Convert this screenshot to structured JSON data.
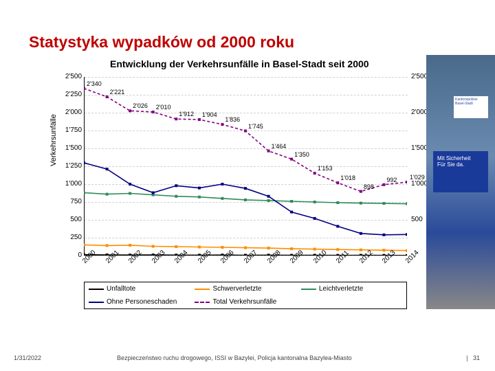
{
  "title": "Statystyka wypadków od 2000 roku",
  "title_color": "#c00000",
  "chart": {
    "type": "line",
    "title": "Entwicklung der Verkehrsunfälle in Basel-Stadt seit 2000",
    "ylabel": "Verkehrsunfälle",
    "ylim": [
      0,
      2500
    ],
    "ytick_step": 250,
    "yticks": [
      "0",
      "250",
      "500",
      "750",
      "1'000",
      "1'250",
      "1'500",
      "1'750",
      "2'000",
      "2'250",
      "2'500"
    ],
    "right_yticks": [
      "500",
      "1'000",
      "1'500",
      "2'000",
      "2'500"
    ],
    "categories": [
      "2000",
      "2001",
      "2002",
      "2003",
      "2004",
      "2005",
      "2006",
      "2007",
      "2008",
      "2009",
      "2010",
      "2011",
      "2012",
      "2013",
      "2014"
    ],
    "series": [
      {
        "name": "Unfalltote",
        "color": "#000000",
        "dash": false,
        "values": [
          12,
          10,
          8,
          9,
          7,
          6,
          8,
          5,
          6,
          4,
          5,
          3,
          4,
          3,
          2
        ],
        "labels": []
      },
      {
        "name": "Schwerverletzte",
        "color": "#ff8c00",
        "dash": false,
        "values": [
          150,
          140,
          145,
          130,
          125,
          120,
          115,
          110,
          105,
          95,
          90,
          85,
          80,
          75,
          70
        ],
        "labels": []
      },
      {
        "name": "Leichtverletzte",
        "color": "#2e8b57",
        "dash": false,
        "values": [
          880,
          860,
          870,
          850,
          830,
          820,
          800,
          780,
          770,
          760,
          750,
          740,
          735,
          730,
          725
        ],
        "labels": []
      },
      {
        "name": "Ohne Personeschaden",
        "color": "#000080",
        "dash": false,
        "values": [
          1298,
          1211,
          1000,
          880,
          978,
          946,
          1000,
          940,
          830,
          610,
          520,
          410,
          310,
          290,
          295
        ],
        "labels": []
      },
      {
        "name": "Total Verkehrsunfälle",
        "color": "#800080",
        "dash": true,
        "values": [
          2340,
          2221,
          2026,
          2010,
          1912,
          1904,
          1836,
          1745,
          1464,
          1350,
          1153,
          1018,
          898,
          992,
          1029
        ],
        "labels": [
          "2'340",
          "2'221",
          "2'026",
          "2'010",
          "1'912",
          "1'904",
          "1'836",
          "1'745",
          "1'464",
          "1'350",
          "1'153",
          "1'018",
          "898",
          "992",
          "1'029"
        ]
      }
    ],
    "legend_order": [
      "Unfalltote",
      "Schwerverletzte",
      "Leichtverletzte",
      "Ohne Personeschaden",
      "Total Verkehrsunfälle"
    ],
    "plot_bg": "#ffffff",
    "grid_color": "#d0d0d0"
  },
  "side_image": {
    "sign_top": "Kantonspolizei",
    "sign_bottom": "Basel-Stadt",
    "banner_line1": "Mit Sicherheit",
    "banner_line2": "Für Sie da."
  },
  "footer": {
    "date": "1/31/2022",
    "text": "Bezpieczeństwo ruchu drogowego, ISSI w Bazylei, Policja kantonalna Bazylea-Miasto",
    "page_sep": "|",
    "page": "31"
  }
}
